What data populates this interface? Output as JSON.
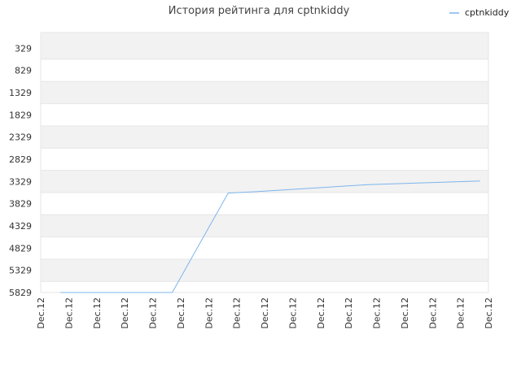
{
  "chart_data": {
    "type": "line",
    "title": "История рейтинга для cptnkiddy",
    "xlabel": "",
    "ylabel": "",
    "y_inverted": true,
    "ylim": [
      329,
      5829
    ],
    "y_ticks": [
      329,
      829,
      1329,
      1829,
      2329,
      2829,
      3329,
      3829,
      4329,
      4829,
      5329,
      5829
    ],
    "x_tick_labels": [
      "Dec.12",
      "Dec.12",
      "Dec.12",
      "Dec.12",
      "Dec.12",
      "Dec.12",
      "Dec.12",
      "Dec.12",
      "Dec.12",
      "Dec.12",
      "Dec.12",
      "Dec.12",
      "Dec.12",
      "Dec.12",
      "Dec.12",
      "Dec.12",
      "Dec.12"
    ],
    "legend_position": "top-right",
    "grid": true,
    "colors": {
      "line": "#7cb5ec",
      "band": "#f2f2f2",
      "grid": "#e6e6e6"
    },
    "series": [
      {
        "name": "cptnkiddy",
        "x": [
          0.7,
          1.7,
          2.7,
          3.7,
          4.7,
          5.7,
          6.7,
          7.7,
          8.7,
          9.7,
          10.7,
          11.7,
          12.7,
          13.7,
          14.7,
          15.7
        ],
        "values": [
          5829,
          5829,
          5829,
          5829,
          5829,
          4710,
          3590,
          3560,
          3520,
          3480,
          3440,
          3400,
          3380,
          3360,
          3340,
          3320
        ]
      }
    ]
  }
}
